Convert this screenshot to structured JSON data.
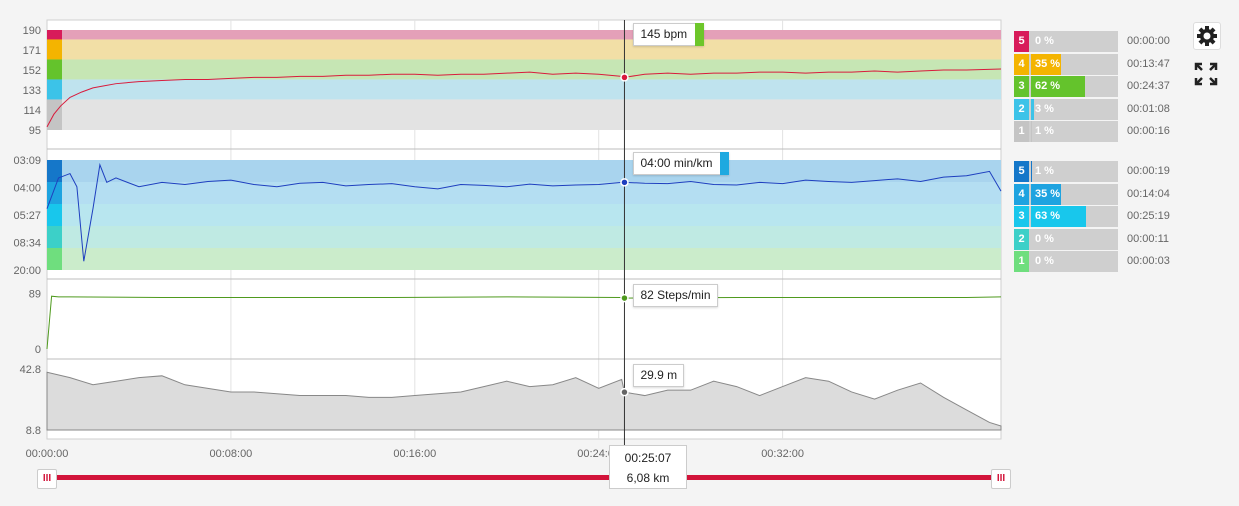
{
  "colors": {
    "hr_line": "#d81b3c",
    "pace_line": "#1e3fbf",
    "cadence_line": "#4f9a1e",
    "elevation_fill": "#dcdcdc",
    "range_bar": "#d2143a"
  },
  "chart_data": [
    {
      "type": "line",
      "name": "heart-rate",
      "y_ticks": [
        "190",
        "171",
        "152",
        "133",
        "114",
        "95"
      ],
      "y_tick_values": [
        190,
        171,
        152,
        133,
        114,
        95
      ],
      "ylim": [
        95,
        190
      ],
      "x_minutes": [
        0,
        0.3,
        0.6,
        1.0,
        1.5,
        2.0,
        2.5,
        3,
        4,
        5,
        6,
        7,
        8,
        9,
        10,
        11,
        12,
        13,
        14,
        15,
        16,
        17,
        18,
        19,
        20,
        21,
        22,
        23,
        24,
        25,
        25.12,
        26,
        27,
        28,
        29,
        30,
        31,
        32,
        33,
        34,
        35,
        36,
        37,
        38,
        39,
        40,
        41.5
      ],
      "values": [
        98,
        110,
        118,
        126,
        131,
        135,
        137,
        139,
        141,
        142,
        143,
        143,
        144,
        145,
        145,
        146,
        146,
        147,
        147,
        148,
        148,
        147,
        148,
        148,
        149,
        150,
        148,
        149,
        148,
        146,
        145,
        148,
        149,
        148,
        149,
        149,
        150,
        150,
        149,
        150,
        150,
        151,
        150,
        151,
        152,
        152,
        153
      ],
      "zones": [
        {
          "zone": "5",
          "from": 181,
          "to": 190,
          "color": "#e4a0b8"
        },
        {
          "zone": "4",
          "from": 162,
          "to": 181,
          "color": "#f2dfa6"
        },
        {
          "zone": "3",
          "from": 143,
          "to": 162,
          "color": "#c6e6b4"
        },
        {
          "zone": "2",
          "from": 124,
          "to": 143,
          "color": "#bfe3ee"
        },
        {
          "zone": "1",
          "from": 95,
          "to": 124,
          "color": "#e3e3e3"
        }
      ],
      "tooltip": "145 bpm",
      "tooltip_color": "#6dc62a"
    },
    {
      "type": "line",
      "name": "pace",
      "y_ticks": [
        "03:09",
        "04:00",
        "05:27",
        "08:34",
        "20:00"
      ],
      "x_minutes": [
        0,
        0.5,
        1,
        1.3,
        1.6,
        2.0,
        2.3,
        2.6,
        3,
        3.5,
        4,
        5,
        6,
        7,
        8,
        9,
        10,
        11,
        12,
        13,
        14,
        15,
        16,
        17,
        18,
        19,
        20,
        21,
        22,
        23,
        24,
        25,
        25.12,
        26,
        27,
        28,
        29,
        30,
        31,
        32,
        33,
        34,
        35,
        36,
        37,
        38,
        39,
        40,
        41,
        41.5
      ],
      "values_sec_per_km": [
        300,
        230,
        220,
        250,
        420,
        300,
        200,
        240,
        230,
        240,
        250,
        240,
        245,
        238,
        235,
        245,
        250,
        242,
        240,
        248,
        245,
        243,
        250,
        255,
        245,
        247,
        250,
        244,
        248,
        246,
        245,
        240,
        240,
        242,
        243,
        238,
        245,
        246,
        240,
        243,
        235,
        238,
        240,
        236,
        232,
        238,
        228,
        225,
        215,
        260
      ],
      "zones": [
        {
          "zone": "5",
          "color": "#a9d4ee"
        },
        {
          "zone": "4",
          "color": "#b4def2"
        },
        {
          "zone": "3",
          "color": "#b8e6ef"
        },
        {
          "zone": "2",
          "color": "#bfeae3"
        },
        {
          "zone": "1",
          "color": "#cbeccb"
        }
      ],
      "tooltip": "04:00  min/km",
      "tooltip_color": "#1ea9e0"
    },
    {
      "type": "line",
      "name": "cadence",
      "y_ticks": [
        "89",
        "0"
      ],
      "ylim": [
        0,
        95
      ],
      "x_minutes": [
        0,
        0.2,
        0.5,
        1,
        5,
        10,
        15,
        20,
        25,
        25.12,
        30,
        35,
        40,
        41.5
      ],
      "values": [
        0,
        85,
        84,
        84,
        83,
        83,
        83,
        84,
        83,
        82,
        83,
        83,
        83,
        84
      ],
      "tooltip": "82  Steps/min"
    },
    {
      "type": "area",
      "name": "elevation",
      "y_ticks": [
        "42.8",
        "8.8"
      ],
      "ylim": [
        8.8,
        42.8
      ],
      "x_minutes": [
        0,
        1,
        2,
        3,
        4,
        5,
        6,
        7,
        8,
        9,
        10,
        11,
        12,
        13,
        14,
        15,
        16,
        17,
        18,
        19,
        20,
        21,
        22,
        23,
        24,
        25,
        25.12,
        26,
        27,
        28,
        29,
        30,
        31,
        32,
        33,
        34,
        35,
        36,
        37,
        38,
        39,
        40,
        41,
        41.5
      ],
      "values": [
        41,
        38,
        34,
        36,
        38,
        39,
        34,
        32,
        30,
        30,
        29,
        28,
        28,
        28,
        27,
        27,
        28,
        29,
        30,
        33,
        36,
        33,
        34,
        38,
        32,
        37,
        29.9,
        28,
        31,
        31,
        36,
        33,
        28,
        33,
        38,
        36,
        30,
        26,
        31,
        35,
        27,
        20,
        13,
        11
      ],
      "tooltip": "29.9  m"
    }
  ],
  "x_axis": {
    "min_minutes": 0,
    "max_minutes": 41.5,
    "ticks": [
      "00:00:00",
      "00:08:00",
      "00:16:00",
      "00:24:00",
      "00:32:00"
    ],
    "tick_minutes": [
      0,
      8,
      16,
      24,
      32
    ]
  },
  "cursor": {
    "minutes": 25.12,
    "time": "00:25:07",
    "distance": "6,08 km"
  },
  "hr_zone_stats": [
    {
      "zone": "5",
      "pct": "0 %",
      "pct_value": 0,
      "time": "00:00:00",
      "color": "#d81b5a"
    },
    {
      "zone": "4",
      "pct": "35 %",
      "pct_value": 35,
      "time": "00:13:47",
      "color": "#f4b400"
    },
    {
      "zone": "3",
      "pct": "62 %",
      "pct_value": 62,
      "time": "00:24:37",
      "color": "#64c32c"
    },
    {
      "zone": "2",
      "pct": "3 %",
      "pct_value": 3,
      "time": "00:01:08",
      "color": "#3cc3e8"
    },
    {
      "zone": "1",
      "pct": "1 %",
      "pct_value": 1,
      "time": "00:00:16",
      "color": "#c4c4c4"
    }
  ],
  "pace_zone_stats": [
    {
      "zone": "5",
      "pct": "1 %",
      "pct_value": 1,
      "time": "00:00:19",
      "color": "#1577c9"
    },
    {
      "zone": "4",
      "pct": "35 %",
      "pct_value": 35,
      "time": "00:14:04",
      "color": "#1ea3e0"
    },
    {
      "zone": "3",
      "pct": "63 %",
      "pct_value": 63,
      "time": "00:25:19",
      "color": "#18c7ec"
    },
    {
      "zone": "2",
      "pct": "0 %",
      "pct_value": 0,
      "time": "00:00:11",
      "color": "#3cd0c8"
    },
    {
      "zone": "1",
      "pct": "0 %",
      "pct_value": 0,
      "time": "00:00:03",
      "color": "#6fde7e"
    }
  ],
  "tools": {
    "settings_icon": "gear-icon",
    "fullscreen_icon": "expand-icon"
  },
  "range_slider": {
    "handle_left_glyph": "III",
    "handle_right_glyph": "III"
  }
}
